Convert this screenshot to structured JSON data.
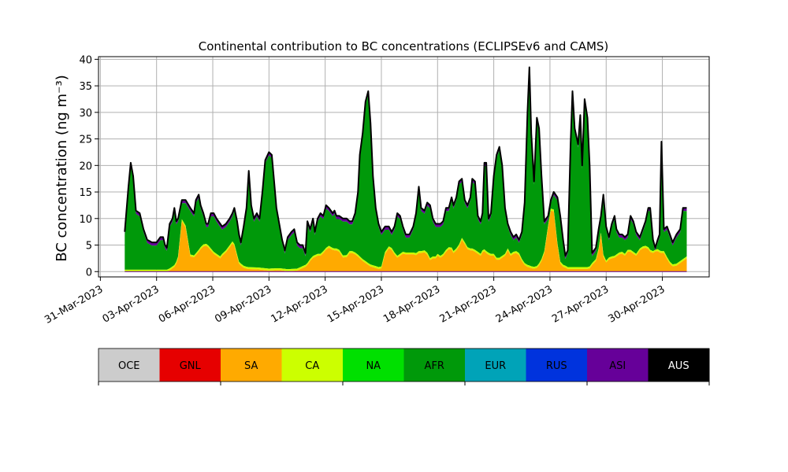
{
  "chart_data": {
    "type": "area",
    "stacked": true,
    "title": "Continental contribution to BC concentrations (ECLIPSEv6 and CAMS)",
    "ylabel": "BC concentration (ng m⁻³)",
    "xlabel": "",
    "grid": true,
    "ylim": [
      -1,
      40.5
    ],
    "xlim_days_from_31mar": [
      -0.1,
      32.5
    ],
    "yticks": [
      0,
      5,
      10,
      15,
      20,
      25,
      30,
      35,
      40
    ],
    "xticks": [
      {
        "day": 0,
        "label": "31-Mar-2023"
      },
      {
        "day": 3,
        "label": "03-Apr-2023"
      },
      {
        "day": 6,
        "label": "06-Apr-2023"
      },
      {
        "day": 9,
        "label": "09-Apr-2023"
      },
      {
        "day": 12,
        "label": "12-Apr-2023"
      },
      {
        "day": 15,
        "label": "15-Apr-2023"
      },
      {
        "day": 18,
        "label": "18-Apr-2023"
      },
      {
        "day": 21,
        "label": "21-Apr-2023"
      },
      {
        "day": 24,
        "label": "24-Apr-2023"
      },
      {
        "day": 27,
        "label": "27-Apr-2023"
      },
      {
        "day": 30,
        "label": "30-Apr-2023"
      }
    ],
    "legend_position": "below",
    "legend": [
      {
        "name": "OCE",
        "color": "#cccccc",
        "text_color": "#000000"
      },
      {
        "name": "GNL",
        "color": "#e60000",
        "text_color": "#000000"
      },
      {
        "name": "SA",
        "color": "#ffaa00",
        "text_color": "#000000"
      },
      {
        "name": "CA",
        "color": "#ccff00",
        "text_color": "#000000"
      },
      {
        "name": "NA",
        "color": "#00e000",
        "text_color": "#000000"
      },
      {
        "name": "AFR",
        "color": "#00990a",
        "text_color": "#000000"
      },
      {
        "name": "EUR",
        "color": "#00a3b8",
        "text_color": "#000000"
      },
      {
        "name": "RUS",
        "color": "#0033dd",
        "text_color": "#000000"
      },
      {
        "name": "ASI",
        "color": "#660099",
        "text_color": "#000000"
      },
      {
        "name": "AUS",
        "color": "#000000",
        "text_color": "#ffffff"
      }
    ],
    "series_order": [
      "SA",
      "CA",
      "AFR",
      "ASI"
    ],
    "series_colors": {
      "SA": "#ffaa00",
      "CA": "#ccff00",
      "AFR": "#00990a",
      "ASI": "#660099"
    },
    "outline_color": "#000000",
    "total_points": [
      [
        1.3,
        7.5
      ],
      [
        1.5,
        16
      ],
      [
        1.62,
        20.5
      ],
      [
        1.75,
        18
      ],
      [
        1.9,
        11.5
      ],
      [
        2.1,
        11
      ],
      [
        2.3,
        8
      ],
      [
        2.5,
        6
      ],
      [
        2.75,
        5.5
      ],
      [
        3.0,
        5.5
      ],
      [
        3.2,
        6.5
      ],
      [
        3.35,
        6.5
      ],
      [
        3.45,
        5
      ],
      [
        3.55,
        4.5
      ],
      [
        3.7,
        9
      ],
      [
        3.85,
        10
      ],
      [
        3.95,
        12
      ],
      [
        4.05,
        9.5
      ],
      [
        4.15,
        10
      ],
      [
        4.35,
        13.5
      ],
      [
        4.55,
        13.5
      ],
      [
        4.8,
        12
      ],
      [
        5.0,
        11
      ],
      [
        5.1,
        13.5
      ],
      [
        5.25,
        14.5
      ],
      [
        5.35,
        12.5
      ],
      [
        5.5,
        11
      ],
      [
        5.65,
        9
      ],
      [
        5.75,
        9
      ],
      [
        5.9,
        11
      ],
      [
        6.05,
        11
      ],
      [
        6.2,
        10
      ],
      [
        6.4,
        9
      ],
      [
        6.5,
        8.5
      ],
      [
        6.7,
        9
      ],
      [
        6.9,
        10
      ],
      [
        7.05,
        11
      ],
      [
        7.15,
        12
      ],
      [
        7.3,
        9.5
      ],
      [
        7.4,
        7
      ],
      [
        7.5,
        5.5
      ],
      [
        7.65,
        8.5
      ],
      [
        7.8,
        12
      ],
      [
        7.92,
        19
      ],
      [
        8.05,
        12.5
      ],
      [
        8.2,
        10
      ],
      [
        8.35,
        11
      ],
      [
        8.5,
        10
      ],
      [
        8.65,
        15
      ],
      [
        8.8,
        21
      ],
      [
        9.0,
        22.5
      ],
      [
        9.15,
        22
      ],
      [
        9.25,
        18
      ],
      [
        9.4,
        12
      ],
      [
        9.55,
        9
      ],
      [
        9.7,
        6
      ],
      [
        9.85,
        4
      ],
      [
        10.0,
        6.5
      ],
      [
        10.2,
        7.5
      ],
      [
        10.35,
        8
      ],
      [
        10.5,
        5.5
      ],
      [
        10.65,
        5
      ],
      [
        10.8,
        5
      ],
      [
        10.95,
        3.5
      ],
      [
        11.05,
        9.5
      ],
      [
        11.2,
        8
      ],
      [
        11.35,
        10
      ],
      [
        11.45,
        7.5
      ],
      [
        11.6,
        10
      ],
      [
        11.75,
        11
      ],
      [
        11.9,
        10.5
      ],
      [
        12.05,
        12.5
      ],
      [
        12.2,
        12
      ],
      [
        12.4,
        11
      ],
      [
        12.5,
        11.5
      ],
      [
        12.6,
        10.5
      ],
      [
        12.75,
        10.5
      ],
      [
        12.95,
        10
      ],
      [
        13.15,
        10
      ],
      [
        13.3,
        9.5
      ],
      [
        13.45,
        9.5
      ],
      [
        13.6,
        11
      ],
      [
        13.75,
        15
      ],
      [
        13.85,
        22
      ],
      [
        14.0,
        26
      ],
      [
        14.15,
        32
      ],
      [
        14.3,
        34
      ],
      [
        14.42,
        28
      ],
      [
        14.55,
        18
      ],
      [
        14.7,
        12
      ],
      [
        14.85,
        9
      ],
      [
        15.0,
        7.5
      ],
      [
        15.2,
        8.5
      ],
      [
        15.4,
        8.5
      ],
      [
        15.55,
        7.5
      ],
      [
        15.7,
        8.5
      ],
      [
        15.85,
        11
      ],
      [
        16.0,
        10.5
      ],
      [
        16.15,
        8.5
      ],
      [
        16.3,
        7
      ],
      [
        16.5,
        7
      ],
      [
        16.7,
        8.5
      ],
      [
        16.85,
        11
      ],
      [
        17.0,
        16
      ],
      [
        17.12,
        12
      ],
      [
        17.3,
        11.5
      ],
      [
        17.45,
        13
      ],
      [
        17.6,
        12.5
      ],
      [
        17.75,
        10
      ],
      [
        17.9,
        9
      ],
      [
        18.0,
        9
      ],
      [
        18.15,
        9
      ],
      [
        18.3,
        9.5
      ],
      [
        18.45,
        12
      ],
      [
        18.6,
        12
      ],
      [
        18.75,
        14
      ],
      [
        18.85,
        12.5
      ],
      [
        19.0,
        14
      ],
      [
        19.15,
        17
      ],
      [
        19.3,
        17.5
      ],
      [
        19.45,
        13.5
      ],
      [
        19.6,
        12.5
      ],
      [
        19.75,
        14
      ],
      [
        19.85,
        17.5
      ],
      [
        20.0,
        17
      ],
      [
        20.15,
        10.5
      ],
      [
        20.3,
        9.5
      ],
      [
        20.4,
        11
      ],
      [
        20.5,
        20.5
      ],
      [
        20.6,
        20.5
      ],
      [
        20.72,
        10
      ],
      [
        20.85,
        11
      ],
      [
        21.0,
        18
      ],
      [
        21.15,
        22
      ],
      [
        21.3,
        23.5
      ],
      [
        21.45,
        20
      ],
      [
        21.6,
        12
      ],
      [
        21.75,
        9
      ],
      [
        21.9,
        7.5
      ],
      [
        22.05,
        6.5
      ],
      [
        22.2,
        7
      ],
      [
        22.35,
        6
      ],
      [
        22.5,
        7.5
      ],
      [
        22.65,
        13
      ],
      [
        22.8,
        30
      ],
      [
        22.9,
        38.5
      ],
      [
        23.0,
        26
      ],
      [
        23.15,
        17
      ],
      [
        23.3,
        29
      ],
      [
        23.42,
        27
      ],
      [
        23.55,
        18
      ],
      [
        23.7,
        9.5
      ],
      [
        23.9,
        10.5
      ],
      [
        24.05,
        13.5
      ],
      [
        24.2,
        15
      ],
      [
        24.4,
        14
      ],
      [
        24.55,
        10.5
      ],
      [
        24.7,
        6
      ],
      [
        24.82,
        3
      ],
      [
        24.95,
        4
      ],
      [
        25.1,
        24
      ],
      [
        25.2,
        34
      ],
      [
        25.32,
        27
      ],
      [
        25.5,
        24
      ],
      [
        25.62,
        29.5
      ],
      [
        25.72,
        20
      ],
      [
        25.85,
        32.5
      ],
      [
        26.0,
        29
      ],
      [
        26.12,
        20
      ],
      [
        26.25,
        3.5
      ],
      [
        26.45,
        4.5
      ],
      [
        26.6,
        8
      ],
      [
        26.72,
        10.5
      ],
      [
        26.85,
        14.5
      ],
      [
        27.0,
        8.5
      ],
      [
        27.15,
        6.5
      ],
      [
        27.3,
        9
      ],
      [
        27.45,
        10.5
      ],
      [
        27.55,
        8
      ],
      [
        27.7,
        7
      ],
      [
        27.85,
        7
      ],
      [
        28.0,
        6.5
      ],
      [
        28.15,
        7
      ],
      [
        28.3,
        10.5
      ],
      [
        28.45,
        9.5
      ],
      [
        28.6,
        7.5
      ],
      [
        28.8,
        6.5
      ],
      [
        28.95,
        8
      ],
      [
        29.1,
        9.5
      ],
      [
        29.25,
        12
      ],
      [
        29.35,
        12
      ],
      [
        29.5,
        6
      ],
      [
        29.62,
        4.5
      ],
      [
        29.75,
        6
      ],
      [
        29.85,
        7
      ],
      [
        29.95,
        24.5
      ],
      [
        30.08,
        8
      ],
      [
        30.25,
        8.5
      ],
      [
        30.4,
        7
      ],
      [
        30.55,
        5.5
      ],
      [
        30.75,
        7
      ],
      [
        30.95,
        8
      ],
      [
        31.1,
        12
      ],
      [
        31.3,
        12
      ]
    ],
    "sa_points": [
      [
        1.3,
        0
      ],
      [
        3.6,
        0
      ],
      [
        3.8,
        0.5
      ],
      [
        4.0,
        1
      ],
      [
        4.2,
        3
      ],
      [
        4.35,
        9.5
      ],
      [
        4.45,
        10
      ],
      [
        4.6,
        7.5
      ],
      [
        4.75,
        3
      ],
      [
        4.95,
        2.5
      ],
      [
        5.2,
        3.5
      ],
      [
        5.4,
        4.5
      ],
      [
        5.6,
        5
      ],
      [
        5.8,
        4.5
      ],
      [
        6.0,
        3.5
      ],
      [
        6.2,
        3
      ],
      [
        6.4,
        2.5
      ],
      [
        6.6,
        3.5
      ],
      [
        6.8,
        3.8
      ],
      [
        6.95,
        5
      ],
      [
        7.1,
        5.5
      ],
      [
        7.25,
        3.5
      ],
      [
        7.4,
        1.5
      ],
      [
        7.6,
        0.8
      ],
      [
        7.85,
        0.5
      ],
      [
        8.5,
        0.4
      ],
      [
        9.0,
        0.2
      ],
      [
        9.5,
        0.3
      ],
      [
        10.0,
        0.1
      ],
      [
        10.5,
        0.2
      ],
      [
        11.0,
        1
      ],
      [
        11.3,
        2.5
      ],
      [
        11.6,
        3
      ],
      [
        11.8,
        3
      ],
      [
        12.0,
        4
      ],
      [
        12.2,
        4.5
      ],
      [
        12.45,
        4
      ],
      [
        12.7,
        4
      ],
      [
        12.9,
        3
      ],
      [
        13.05,
        2
      ],
      [
        13.25,
        3.5
      ],
      [
        13.5,
        3.5
      ],
      [
        13.7,
        3
      ],
      [
        13.85,
        2.5
      ],
      [
        14.0,
        2
      ],
      [
        14.2,
        1.5
      ],
      [
        14.4,
        1
      ],
      [
        14.6,
        0.8
      ],
      [
        14.85,
        0.5
      ],
      [
        15.0,
        0.6
      ],
      [
        15.15,
        3
      ],
      [
        15.35,
        4.5
      ],
      [
        15.6,
        4
      ],
      [
        15.8,
        2.5
      ],
      [
        16.0,
        3
      ],
      [
        16.2,
        3.5
      ],
      [
        16.4,
        3
      ],
      [
        16.6,
        3.5
      ],
      [
        16.8,
        3
      ],
      [
        17.0,
        3.5
      ],
      [
        17.2,
        3.5
      ],
      [
        17.4,
        3.8
      ],
      [
        17.55,
        2
      ],
      [
        17.7,
        2.5
      ],
      [
        17.9,
        2.5
      ],
      [
        18.0,
        3
      ],
      [
        18.2,
        2.5
      ],
      [
        18.5,
        4
      ],
      [
        18.7,
        4.5
      ],
      [
        18.85,
        3.5
      ],
      [
        19.0,
        4
      ],
      [
        19.2,
        5
      ],
      [
        19.35,
        6.5
      ],
      [
        19.5,
        4.5
      ],
      [
        19.7,
        4
      ],
      [
        19.9,
        4
      ],
      [
        20.1,
        3.5
      ],
      [
        20.3,
        3
      ],
      [
        20.45,
        4
      ],
      [
        20.6,
        3.5
      ],
      [
        20.8,
        3
      ],
      [
        21.0,
        3
      ],
      [
        21.2,
        2
      ],
      [
        21.4,
        2.5
      ],
      [
        21.6,
        3
      ],
      [
        21.75,
        4
      ],
      [
        21.9,
        3
      ],
      [
        22.1,
        3.5
      ],
      [
        22.3,
        3.5
      ],
      [
        22.5,
        2
      ],
      [
        22.7,
        1
      ],
      [
        22.9,
        0.8
      ],
      [
        23.1,
        0.5
      ],
      [
        23.3,
        0.7
      ],
      [
        23.5,
        1.5
      ],
      [
        23.7,
        3.5
      ],
      [
        23.85,
        7
      ],
      [
        24.0,
        11
      ],
      [
        24.15,
        12.5
      ],
      [
        24.3,
        9
      ],
      [
        24.45,
        3
      ],
      [
        24.6,
        0.8
      ],
      [
        24.75,
        1
      ],
      [
        24.9,
        0.5
      ],
      [
        25.1,
        0.5
      ],
      [
        25.4,
        0.5
      ],
      [
        25.8,
        0.5
      ],
      [
        26.1,
        0.5
      ],
      [
        26.3,
        1.5
      ],
      [
        26.45,
        2
      ],
      [
        26.6,
        4
      ],
      [
        26.72,
        7
      ],
      [
        26.8,
        3.5
      ],
      [
        26.95,
        1.5
      ],
      [
        27.2,
        2.5
      ],
      [
        27.4,
        2.5
      ],
      [
        27.6,
        3
      ],
      [
        27.8,
        3.5
      ],
      [
        28.0,
        3
      ],
      [
        28.2,
        4
      ],
      [
        28.4,
        3.5
      ],
      [
        28.6,
        3
      ],
      [
        28.8,
        4
      ],
      [
        29.0,
        4.5
      ],
      [
        29.2,
        4.5
      ],
      [
        29.4,
        3.5
      ],
      [
        29.5,
        3.5
      ],
      [
        29.7,
        4
      ],
      [
        29.9,
        3.5
      ],
      [
        30.1,
        3.5
      ],
      [
        30.3,
        2
      ],
      [
        30.5,
        1
      ],
      [
        30.7,
        1
      ],
      [
        30.9,
        1.5
      ],
      [
        31.1,
        2
      ],
      [
        31.3,
        2.5
      ]
    ]
  }
}
